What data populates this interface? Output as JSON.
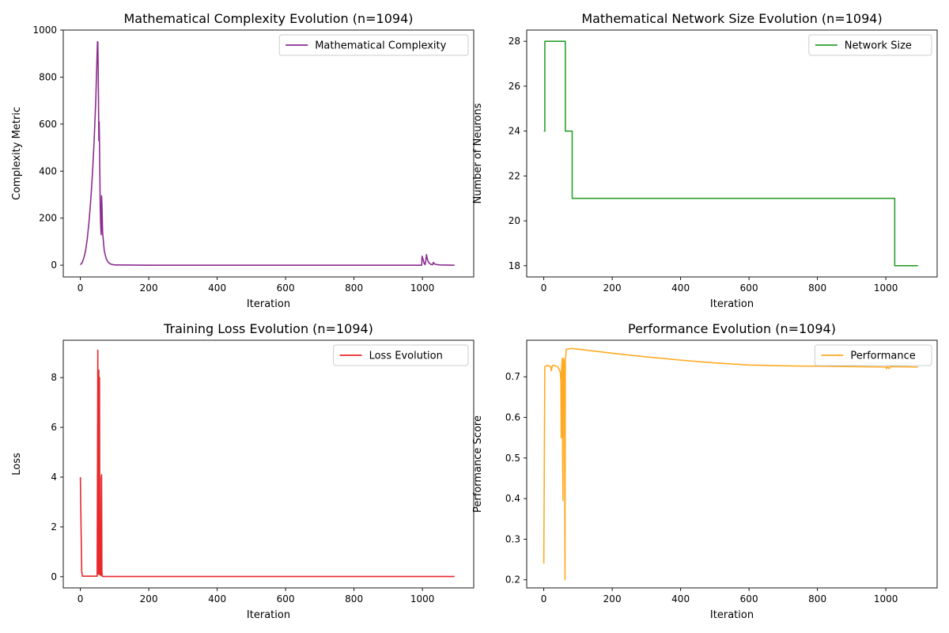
{
  "chart_data": [
    {
      "type": "line",
      "title": "Mathematical Complexity Evolution (n=1094)",
      "xlabel": "Iteration",
      "ylabel": "Complexity Metric",
      "xlim": [
        -50,
        1150
      ],
      "ylim": [
        -50,
        1000
      ],
      "xticks": [
        0,
        200,
        400,
        600,
        800,
        1000
      ],
      "yticks": [
        0,
        200,
        400,
        600,
        800,
        1000
      ],
      "legend_position": "upper-right",
      "series": [
        {
          "name": "Mathematical Complexity",
          "color": "#8b2c8f",
          "points": [
            [
              0,
              2
            ],
            [
              5,
              10
            ],
            [
              10,
              30
            ],
            [
              15,
              60
            ],
            [
              20,
              110
            ],
            [
              25,
              180
            ],
            [
              30,
              270
            ],
            [
              35,
              380
            ],
            [
              40,
              520
            ],
            [
              45,
              700
            ],
            [
              48,
              850
            ],
            [
              50,
              950
            ],
            [
              51,
              950
            ],
            [
              52,
              850
            ],
            [
              53,
              700
            ],
            [
              54,
              530
            ],
            [
              55,
              610
            ],
            [
              56,
              520
            ],
            [
              57,
              380
            ],
            [
              58,
              260
            ],
            [
              59,
              190
            ],
            [
              60,
              150
            ],
            [
              61,
              130
            ],
            [
              62,
              295
            ],
            [
              63,
              260
            ],
            [
              64,
              200
            ],
            [
              65,
              140
            ],
            [
              68,
              90
            ],
            [
              70,
              60
            ],
            [
              75,
              30
            ],
            [
              80,
              15
            ],
            [
              85,
              8
            ],
            [
              90,
              4
            ],
            [
              100,
              1
            ],
            [
              200,
              0
            ],
            [
              400,
              0
            ],
            [
              600,
              0
            ],
            [
              800,
              0
            ],
            [
              998,
              0
            ],
            [
              999,
              38
            ],
            [
              1002,
              25
            ],
            [
              1005,
              8
            ],
            [
              1008,
              2
            ],
            [
              1010,
              20
            ],
            [
              1012,
              45
            ],
            [
              1014,
              28
            ],
            [
              1018,
              12
            ],
            [
              1022,
              6
            ],
            [
              1026,
              3
            ],
            [
              1030,
              2
            ],
            [
              1032,
              12
            ],
            [
              1035,
              6
            ],
            [
              1040,
              3
            ],
            [
              1050,
              1
            ],
            [
              1094,
              0
            ]
          ]
        }
      ]
    },
    {
      "type": "line",
      "title": "Mathematical Network Size Evolution (n=1094)",
      "xlabel": "Iteration",
      "ylabel": "Number of Neurons",
      "xlim": [
        -50,
        1150
      ],
      "ylim": [
        17.5,
        28.5
      ],
      "xticks": [
        0,
        200,
        400,
        600,
        800,
        1000
      ],
      "yticks": [
        18,
        20,
        22,
        24,
        26,
        28
      ],
      "legend_position": "upper-right",
      "series": [
        {
          "name": "Network Size",
          "color": "#2ca02c",
          "points": [
            [
              0,
              24
            ],
            [
              3,
              24
            ],
            [
              3,
              28
            ],
            [
              63,
              28
            ],
            [
              63,
              24
            ],
            [
              83,
              24
            ],
            [
              83,
              21
            ],
            [
              1026,
              21
            ],
            [
              1026,
              18
            ],
            [
              1094,
              18
            ]
          ]
        }
      ]
    },
    {
      "type": "line",
      "title": "Training Loss Evolution (n=1094)",
      "xlabel": "Iteration",
      "ylabel": "Loss",
      "xlim": [
        -50,
        1150
      ],
      "ylim": [
        -0.45,
        9.5
      ],
      "xticks": [
        0,
        200,
        400,
        600,
        800,
        1000
      ],
      "yticks": [
        0,
        2,
        4,
        6,
        8
      ],
      "legend_position": "upper-right",
      "series": [
        {
          "name": "Loss Evolution",
          "color": "#e8282b",
          "points": [
            [
              0,
              4.0
            ],
            [
              2,
              2.0
            ],
            [
              4,
              0.2
            ],
            [
              6,
              0.02
            ],
            [
              20,
              0.02
            ],
            [
              40,
              0.02
            ],
            [
              49,
              0.02
            ],
            [
              50,
              4.0
            ],
            [
              51,
              9.1
            ],
            [
              52,
              4.0
            ],
            [
              53,
              0.1
            ],
            [
              54,
              8.3
            ],
            [
              55,
              0.1
            ],
            [
              56,
              8.0
            ],
            [
              57,
              0.1
            ],
            [
              60,
              0.05
            ],
            [
              61,
              4.0
            ],
            [
              62,
              4.1
            ],
            [
              63,
              0.2
            ],
            [
              64,
              0.01
            ],
            [
              100,
              0.01
            ],
            [
              400,
              0.01
            ],
            [
              800,
              0.01
            ],
            [
              1000,
              0.01
            ],
            [
              1094,
              0.01
            ]
          ]
        }
      ]
    },
    {
      "type": "line",
      "title": "Performance Evolution (n=1094)",
      "xlabel": "Iteration",
      "ylabel": "Performance Score",
      "xlim": [
        -50,
        1150
      ],
      "ylim": [
        0.18,
        0.79
      ],
      "xticks": [
        0,
        200,
        400,
        600,
        800,
        1000
      ],
      "yticks": [
        0.2,
        0.3,
        0.4,
        0.5,
        0.6,
        0.7
      ],
      "legend_position": "upper-right",
      "series": [
        {
          "name": "Performance",
          "color": "#ffaa22",
          "points": [
            [
              0,
              0.24
            ],
            [
              3,
              0.725
            ],
            [
              10,
              0.728
            ],
            [
              20,
              0.725
            ],
            [
              22,
              0.715
            ],
            [
              25,
              0.728
            ],
            [
              35,
              0.727
            ],
            [
              40,
              0.725
            ],
            [
              45,
              0.718
            ],
            [
              48,
              0.712
            ],
            [
              50,
              0.69
            ],
            [
              51,
              0.55
            ],
            [
              52,
              0.72
            ],
            [
              54,
              0.745
            ],
            [
              55,
              0.5
            ],
            [
              56,
              0.395
            ],
            [
              57,
              0.74
            ],
            [
              58,
              0.745
            ],
            [
              60,
              0.735
            ],
            [
              62,
              0.2
            ],
            [
              63,
              0.74
            ],
            [
              66,
              0.768
            ],
            [
              70,
              0.768
            ],
            [
              80,
              0.77
            ],
            [
              100,
              0.768
            ],
            [
              200,
              0.758
            ],
            [
              300,
              0.749
            ],
            [
              400,
              0.741
            ],
            [
              500,
              0.734
            ],
            [
              600,
              0.729
            ],
            [
              700,
              0.727
            ],
            [
              800,
              0.726
            ],
            [
              900,
              0.725
            ],
            [
              1000,
              0.724
            ],
            [
              1002,
              0.72
            ],
            [
              1005,
              0.725
            ],
            [
              1010,
              0.72
            ],
            [
              1012,
              0.725
            ],
            [
              1094,
              0.724
            ]
          ]
        }
      ]
    }
  ]
}
